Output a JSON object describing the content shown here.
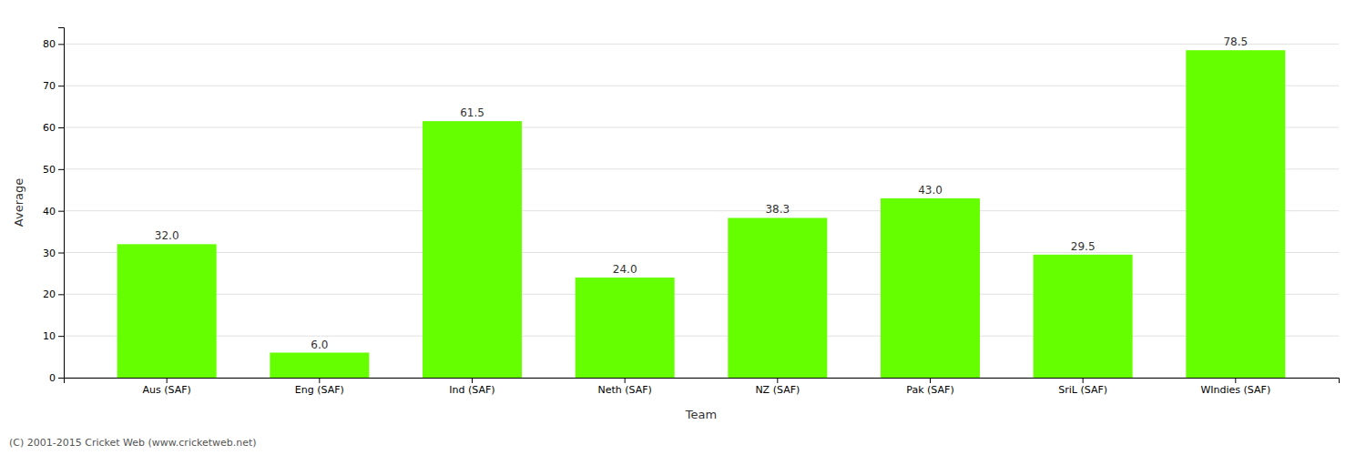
{
  "chart_data": {
    "type": "bar",
    "categories": [
      "Aus (SAF)",
      "Eng (SAF)",
      "Ind (SAF)",
      "Neth (SAF)",
      "NZ (SAF)",
      "Pak (SAF)",
      "SriL (SAF)",
      "WIndies (SAF)"
    ],
    "values": [
      32.0,
      6.0,
      61.5,
      24.0,
      38.3,
      43.0,
      29.5,
      78.5
    ],
    "value_labels": [
      "32.0",
      "6.0",
      "61.5",
      "24.0",
      "38.3",
      "43.0",
      "29.5",
      "78.5"
    ],
    "color": "#66ff00",
    "xlabel": "Team",
    "ylabel": "Average",
    "ylim": [
      0,
      84
    ],
    "yticks": [
      0,
      10,
      20,
      30,
      40,
      50,
      60,
      70,
      80
    ],
    "grid": true,
    "data_labels": true,
    "annotations": [
      "(C) 2001-2015 Cricket Web (www.cricketweb.net)"
    ]
  }
}
